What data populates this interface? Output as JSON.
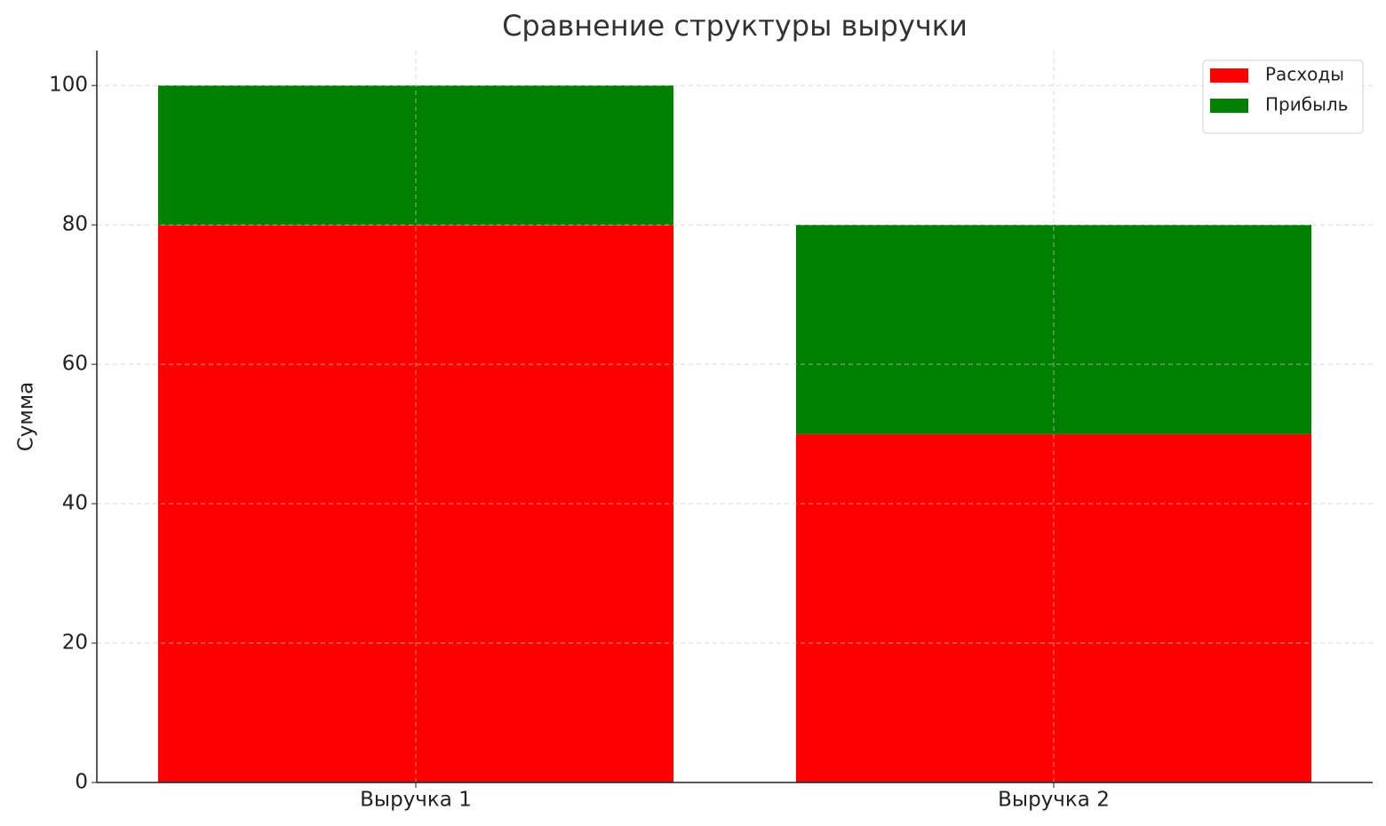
{
  "chart_data": {
    "type": "stacked-bar",
    "title": "Сравнение структуры выручки",
    "y_label": "Сумма",
    "categories": [
      "Выручка 1",
      "Выручка 2"
    ],
    "series": [
      {
        "name": "Расходы",
        "color": "#ff0000",
        "values": [
          80,
          50
        ]
      },
      {
        "name": "Прибыль",
        "color": "#008000",
        "values": [
          20,
          30
        ]
      }
    ],
    "ylim": [
      0,
      105
    ],
    "yticks": [
      0,
      20,
      40,
      60,
      80,
      100
    ],
    "grid": true,
    "legend": "upper right"
  }
}
